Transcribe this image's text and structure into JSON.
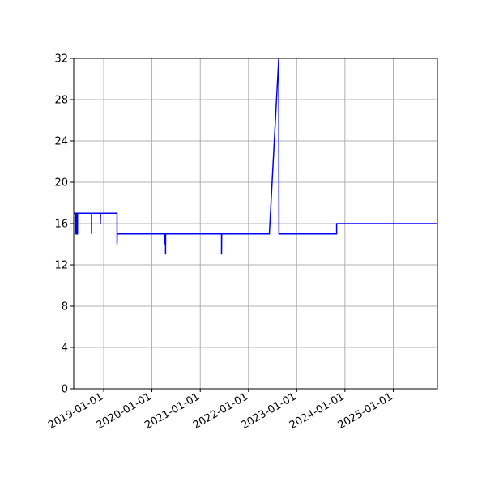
{
  "chart_data": {
    "type": "line",
    "title": "",
    "xlabel": "",
    "ylabel": "",
    "xlim": [
      "2018-05-19",
      "2025-12-01"
    ],
    "ylim": [
      0,
      32
    ],
    "grid": true,
    "line_color": "#0000ff",
    "x_ticks": [
      "2019-01-01",
      "2020-01-01",
      "2021-01-01",
      "2022-01-01",
      "2023-01-01",
      "2024-01-01",
      "2025-01-01"
    ],
    "y_ticks": [
      0,
      4,
      8,
      12,
      16,
      20,
      24,
      28,
      32
    ],
    "series": [
      {
        "points": [
          [
            "2018-05-19",
            17
          ],
          [
            "2018-05-31",
            17
          ],
          [
            "2018-05-31",
            15
          ],
          [
            "2018-06-04",
            15
          ],
          [
            "2018-06-04",
            17
          ],
          [
            "2018-06-07",
            17
          ],
          [
            "2018-06-07",
            15
          ],
          [
            "2018-06-11",
            15
          ],
          [
            "2018-06-11",
            17
          ],
          [
            "2018-06-13",
            17
          ],
          [
            "2018-06-13",
            15
          ],
          [
            "2018-06-17",
            15
          ],
          [
            "2018-06-17",
            17
          ],
          [
            "2018-10-01",
            17
          ],
          [
            "2018-10-01",
            15
          ],
          [
            "2018-10-02",
            17
          ],
          [
            "2018-12-07",
            17
          ],
          [
            "2018-12-07",
            16
          ],
          [
            "2018-12-08",
            17
          ],
          [
            "2019-04-12",
            17
          ],
          [
            "2019-04-12",
            14
          ],
          [
            "2019-04-13",
            15
          ],
          [
            "2020-04-06",
            15
          ],
          [
            "2020-04-06",
            14
          ],
          [
            "2020-04-10",
            15
          ],
          [
            "2020-04-13",
            15
          ],
          [
            "2020-04-13",
            13
          ],
          [
            "2020-04-14",
            15
          ],
          [
            "2021-06-11",
            15
          ],
          [
            "2021-06-11",
            13
          ],
          [
            "2021-06-12",
            15
          ],
          [
            "2022-06-08",
            15
          ],
          [
            "2022-08-18",
            32
          ],
          [
            "2022-08-20",
            15
          ],
          [
            "2023-10-30",
            15
          ],
          [
            "2023-10-30",
            16
          ],
          [
            "2025-12-01",
            16
          ]
        ]
      }
    ]
  }
}
